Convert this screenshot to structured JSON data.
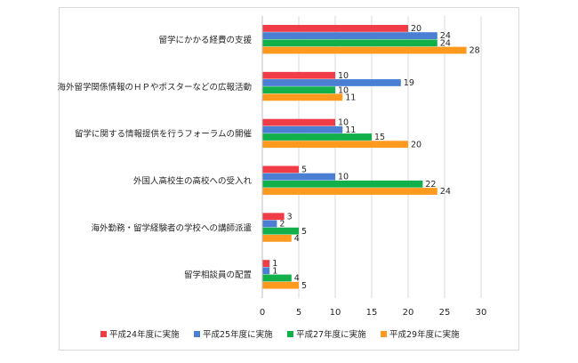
{
  "chart_data": {
    "type": "bar",
    "orientation": "horizontal",
    "categories": [
      "留学にかかる経費の支援",
      "海外留学関係情報のＨＰやポスターなどの広報活動",
      "留学に関する情報提供を行うフォーラムの開催",
      "外国人高校生の高校への受入れ",
      "海外勤務・留学経験者の学校への講師派遣",
      "留学相談員の配置"
    ],
    "series": [
      {
        "name": "平成24年度に実施",
        "color": "#f03c46",
        "values": [
          20,
          10,
          10,
          5,
          3,
          1
        ]
      },
      {
        "name": "平成25年度に実施",
        "color": "#4a7fd4",
        "values": [
          24,
          19,
          11,
          10,
          2,
          1
        ]
      },
      {
        "name": "平成27年度に実施",
        "color": "#12b04a",
        "values": [
          24,
          10,
          15,
          22,
          5,
          4
        ]
      },
      {
        "name": "平成29年度に実施",
        "color": "#ff9a1f",
        "values": [
          28,
          11,
          20,
          24,
          4,
          5
        ]
      }
    ],
    "xlim": [
      0,
      30
    ],
    "xticks": [
      0,
      5,
      10,
      15,
      20,
      25,
      30
    ],
    "grid": true,
    "legend": "bottom"
  }
}
